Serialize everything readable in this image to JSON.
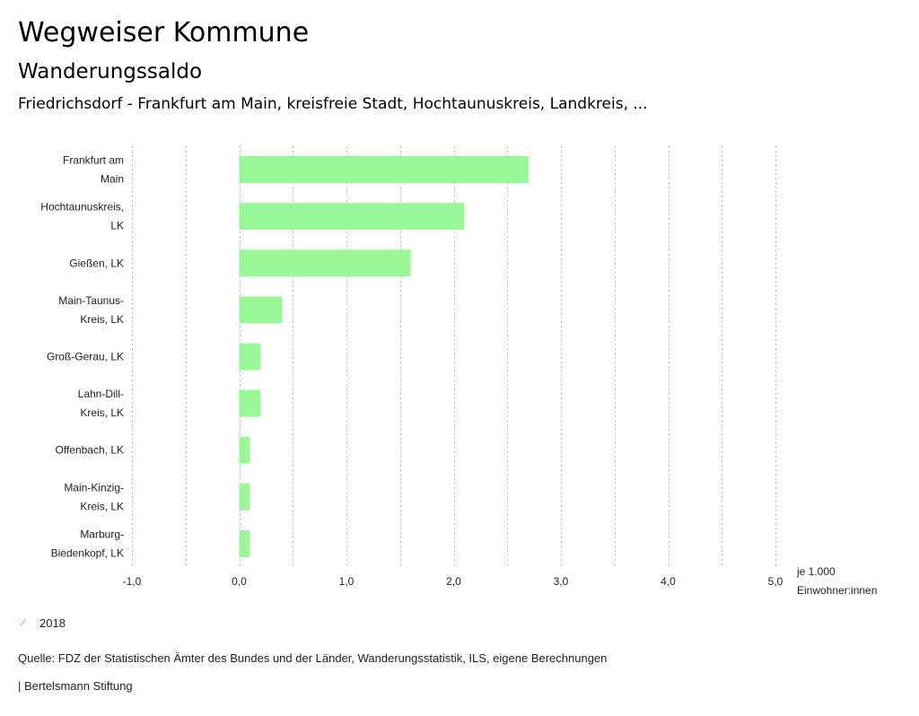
{
  "header": {
    "title": "Wegweiser Kommune",
    "subtitle": "Wanderungssaldo",
    "region": "Friedrichsdorf - Frankfurt am Main, kreisfreie Stadt, Hochtaunuskreis, Landkreis, ..."
  },
  "chart_data": {
    "type": "bar",
    "orientation": "horizontal",
    "title": "Wanderungssaldo",
    "categories": [
      [
        "Frankfurt am",
        "Main"
      ],
      [
        "Hochtaunuskreis,",
        "LK"
      ],
      [
        "Gießen, LK"
      ],
      [
        "Main-Taunus-",
        "Kreis, LK"
      ],
      [
        "Groß-Gerau, LK"
      ],
      [
        "Lahn-Dill-",
        "Kreis, LK"
      ],
      [
        "Offenbach, LK"
      ],
      [
        "Main-Kinzig-",
        "Kreis, LK"
      ],
      [
        "Marburg-",
        "Biedenkopf, LK"
      ]
    ],
    "series": [
      {
        "name": "2018",
        "color": "#99f797",
        "values": [
          2.7,
          2.1,
          1.6,
          0.4,
          0.2,
          0.2,
          0.1,
          0.1,
          0.1
        ]
      }
    ],
    "xlim": [
      -1.0,
      5.0
    ],
    "xticks": [
      -1.0,
      0.0,
      1.0,
      2.0,
      3.0,
      4.0,
      5.0
    ],
    "xtick_labels": [
      "-1,0",
      "0,0",
      "1,0",
      "2,0",
      "3,0",
      "4,0",
      "5,0"
    ],
    "gridlines": [
      -1.0,
      -0.5,
      0.0,
      0.5,
      1.0,
      1.5,
      2.0,
      2.5,
      3.0,
      3.5,
      4.0,
      4.5,
      5.0
    ],
    "grid": true,
    "xlabel": [
      "je 1.000",
      "Einwohner:innen"
    ],
    "legend_position": "bottom-left"
  },
  "legend": {
    "icon": "check-icon",
    "label": "2018",
    "color": "#8fee8f"
  },
  "footer": {
    "source": "Quelle: FDZ der Statistischen Ämter des Bundes und der Länder, Wanderungsstatistik, ILS, eigene Berechnungen",
    "credit": "| Bertelsmann Stiftung"
  }
}
